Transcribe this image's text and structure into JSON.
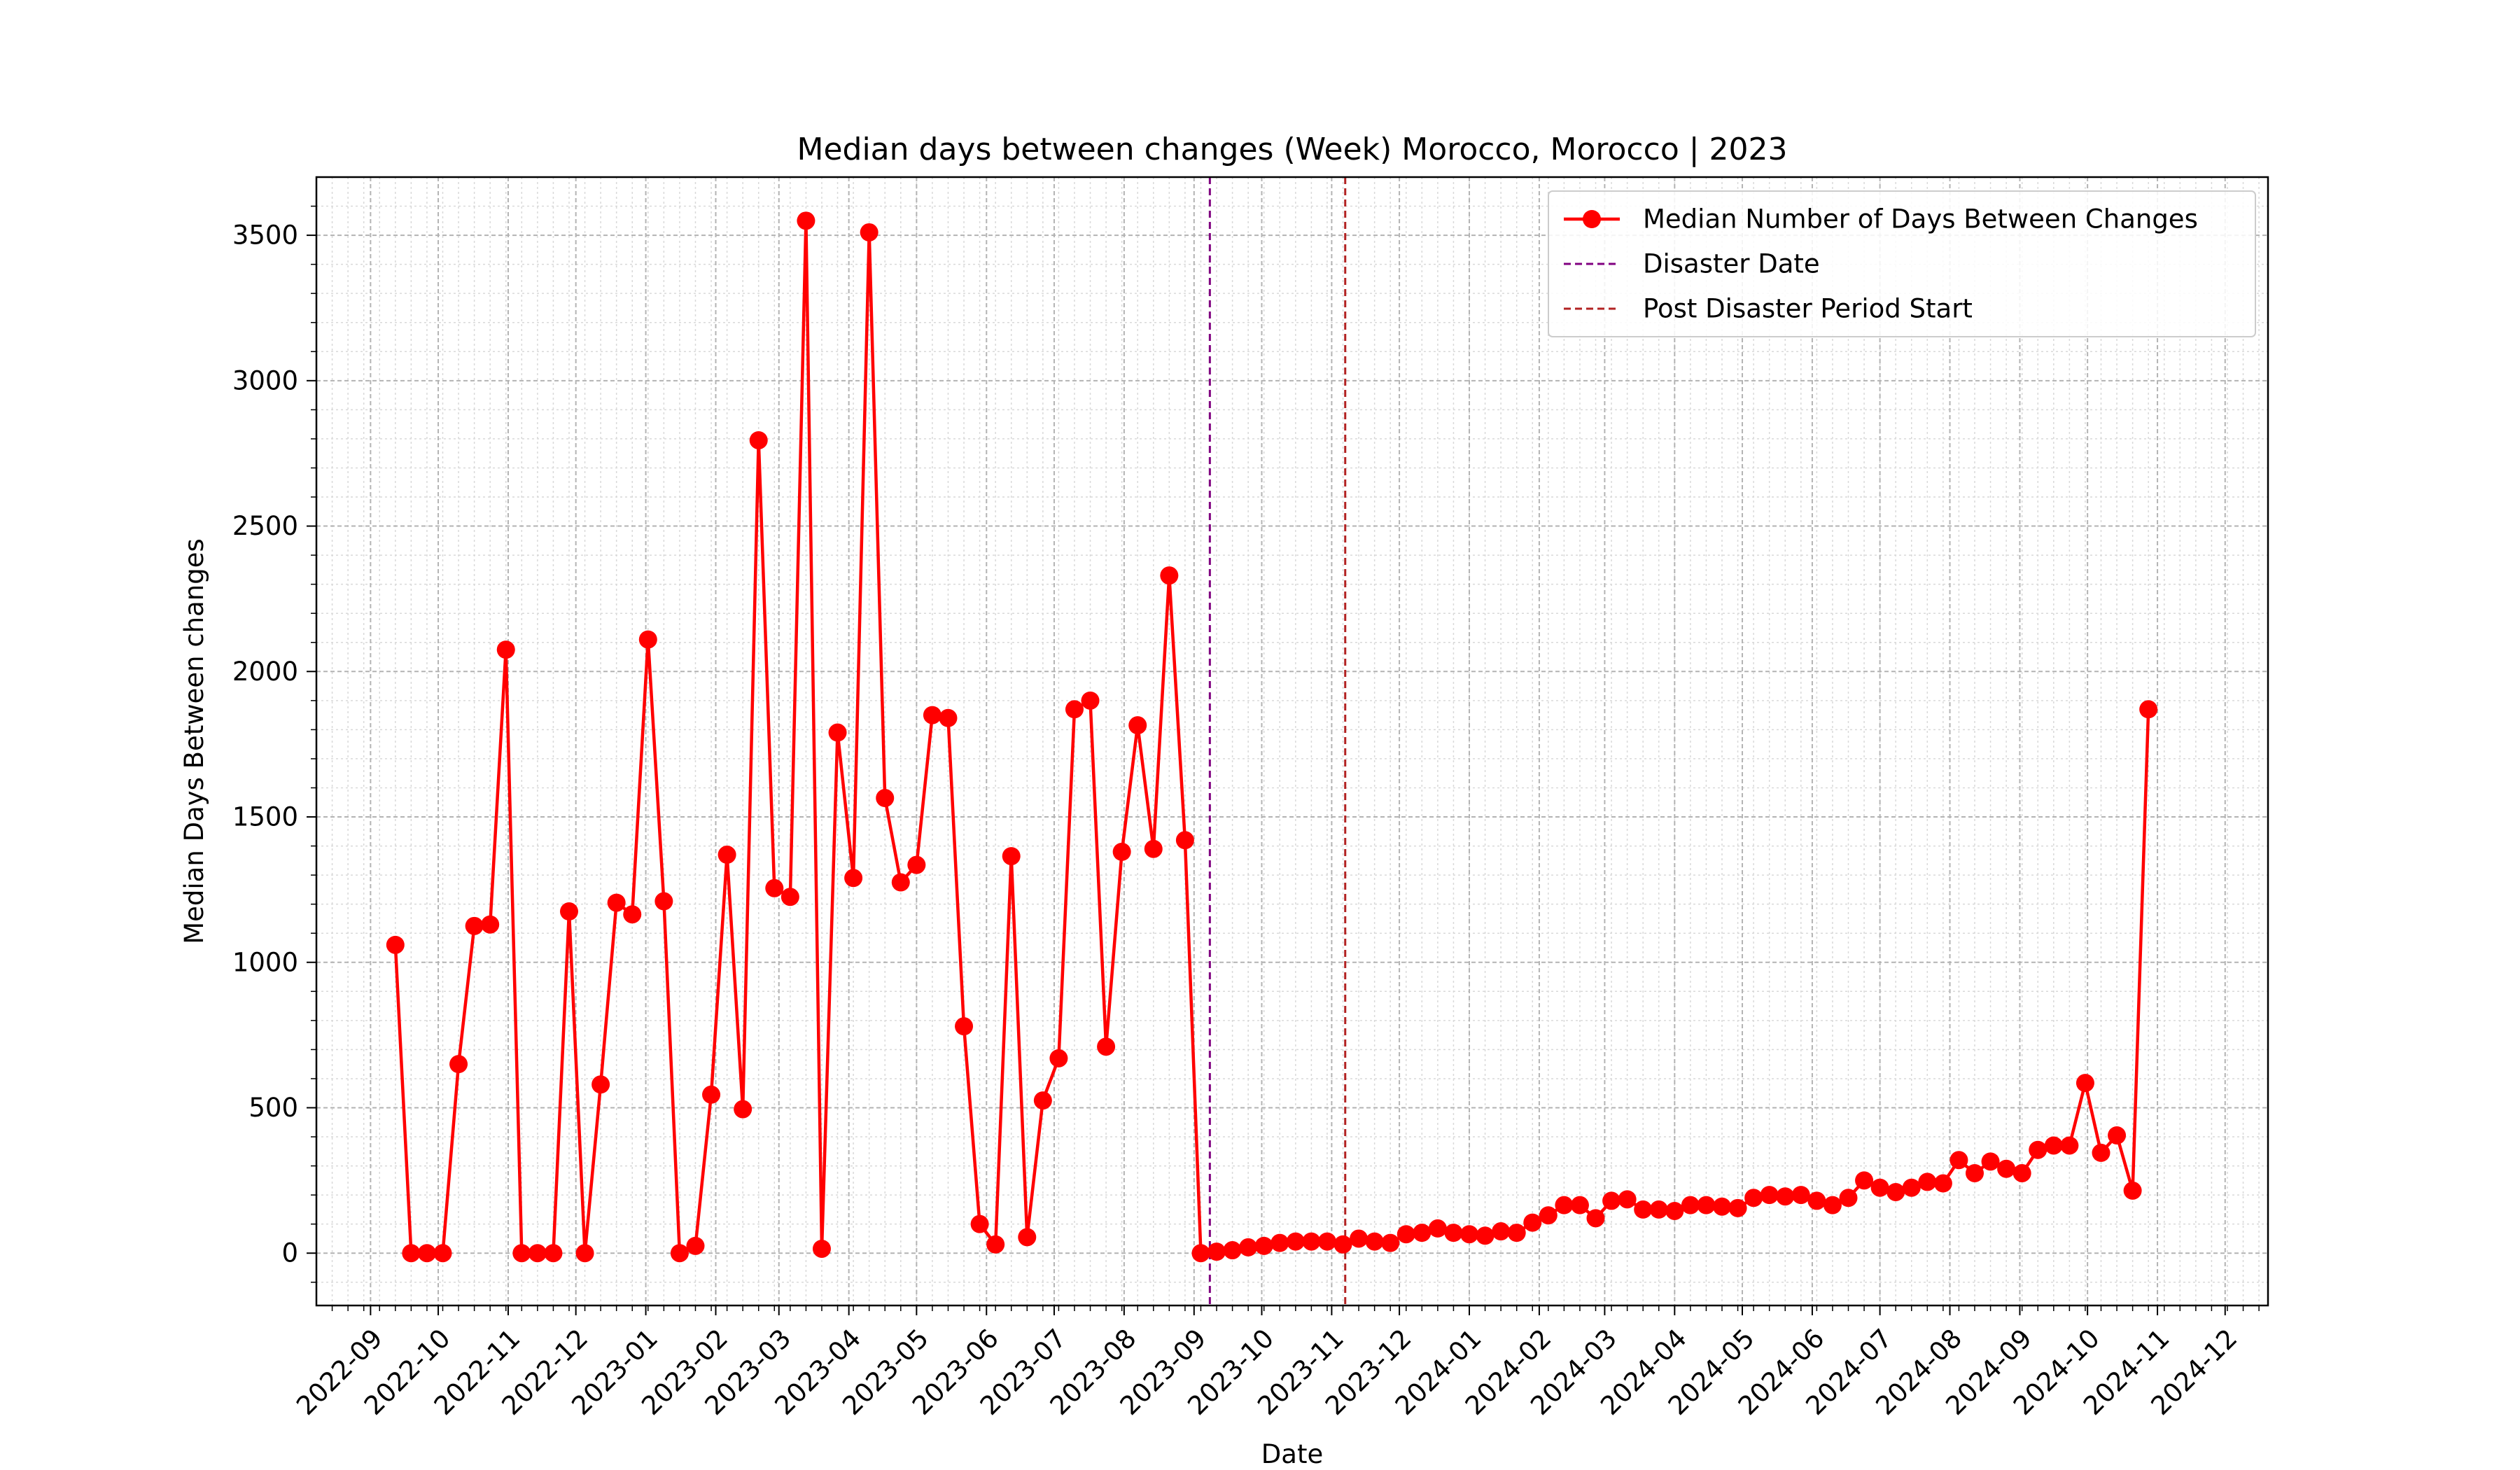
{
  "chart_data": {
    "type": "line",
    "title": "Median days between changes (Week) Morocco, Morocco | 2023",
    "xlabel": "Date",
    "ylabel": "Median Days Between changes",
    "xlim": [
      "2022-08-08",
      "2024-12-20"
    ],
    "ylim": [
      -180,
      3700
    ],
    "x_ticks": [
      "2022-09",
      "2022-10",
      "2022-11",
      "2022-12",
      "2023-01",
      "2023-02",
      "2023-03",
      "2023-04",
      "2023-05",
      "2023-06",
      "2023-07",
      "2023-08",
      "2023-09",
      "2023-10",
      "2023-11",
      "2023-12",
      "2024-01",
      "2024-02",
      "2024-03",
      "2024-04",
      "2024-05",
      "2024-06",
      "2024-07",
      "2024-08",
      "2024-09",
      "2024-10",
      "2024-11",
      "2024-12"
    ],
    "y_ticks": [
      0,
      500,
      1000,
      1500,
      2000,
      2500,
      3000,
      3500
    ],
    "grid": true,
    "legend_position": "top-right",
    "series": [
      {
        "name": "Median Number of Days Between Changes",
        "color": "#ff0000",
        "x": [
          "2022-09-12",
          "2022-09-19",
          "2022-09-26",
          "2022-10-03",
          "2022-10-10",
          "2022-10-17",
          "2022-10-24",
          "2022-10-31",
          "2022-11-07",
          "2022-11-14",
          "2022-11-21",
          "2022-11-28",
          "2022-12-05",
          "2022-12-12",
          "2022-12-19",
          "2022-12-26",
          "2023-01-02",
          "2023-01-09",
          "2023-01-16",
          "2023-01-23",
          "2023-01-30",
          "2023-02-06",
          "2023-02-13",
          "2023-02-20",
          "2023-02-27",
          "2023-03-06",
          "2023-03-13",
          "2023-03-20",
          "2023-03-27",
          "2023-04-03",
          "2023-04-10",
          "2023-04-17",
          "2023-04-24",
          "2023-05-01",
          "2023-05-08",
          "2023-05-15",
          "2023-05-22",
          "2023-05-29",
          "2023-06-05",
          "2023-06-12",
          "2023-06-19",
          "2023-06-26",
          "2023-07-03",
          "2023-07-10",
          "2023-07-17",
          "2023-07-24",
          "2023-07-31",
          "2023-08-07",
          "2023-08-14",
          "2023-08-21",
          "2023-08-28",
          "2023-09-04",
          "2023-09-11",
          "2023-09-18",
          "2023-09-25",
          "2023-10-02",
          "2023-10-09",
          "2023-10-16",
          "2023-10-23",
          "2023-10-30",
          "2023-11-06",
          "2023-11-13",
          "2023-11-20",
          "2023-11-27",
          "2023-12-04",
          "2023-12-11",
          "2023-12-18",
          "2023-12-25",
          "2024-01-01",
          "2024-01-08",
          "2024-01-15",
          "2024-01-22",
          "2024-01-29",
          "2024-02-05",
          "2024-02-12",
          "2024-02-19",
          "2024-02-26",
          "2024-03-04",
          "2024-03-11",
          "2024-03-18",
          "2024-03-25",
          "2024-04-01",
          "2024-04-08",
          "2024-04-15",
          "2024-04-22",
          "2024-04-29",
          "2024-05-06",
          "2024-05-13",
          "2024-05-20",
          "2024-05-27",
          "2024-06-03",
          "2024-06-10",
          "2024-06-17",
          "2024-06-24",
          "2024-07-01",
          "2024-07-08",
          "2024-07-15",
          "2024-07-22",
          "2024-07-29",
          "2024-08-05",
          "2024-08-12",
          "2024-08-19",
          "2024-08-26",
          "2024-09-02",
          "2024-09-09",
          "2024-09-16",
          "2024-09-23",
          "2024-09-30",
          "2024-10-07",
          "2024-10-14",
          "2024-10-21",
          "2024-10-28"
        ],
        "values": [
          1060,
          0,
          0,
          0,
          650,
          1125,
          1130,
          2075,
          0,
          0,
          0,
          1175,
          0,
          580,
          1205,
          1165,
          2110,
          1210,
          0,
          25,
          545,
          1370,
          495,
          2795,
          1255,
          1225,
          3550,
          15,
          1790,
          1290,
          3510,
          1565,
          1275,
          1335,
          1850,
          1840,
          780,
          100,
          30,
          1365,
          55,
          525,
          670,
          1870,
          1900,
          710,
          1380,
          1815,
          1390,
          2330,
          1420,
          0,
          5,
          10,
          20,
          25,
          35,
          40,
          40,
          40,
          30,
          50,
          40,
          35,
          65,
          70,
          85,
          70,
          65,
          60,
          75,
          70,
          105,
          130,
          165,
          165,
          120,
          180,
          185,
          150,
          150,
          145,
          165,
          165,
          160,
          155,
          190,
          200,
          195,
          200,
          180,
          165,
          190,
          250,
          225,
          210,
          225,
          245,
          240,
          320,
          275,
          315,
          290,
          275,
          355,
          370,
          370,
          585,
          345,
          405,
          215,
          1870
        ]
      }
    ],
    "vlines": [
      {
        "name": "Disaster Date",
        "x": "2023-09-08",
        "color": "#800080"
      },
      {
        "name": "Post Disaster Period Start",
        "x": "2023-11-07",
        "color": "#b22222"
      }
    ]
  }
}
